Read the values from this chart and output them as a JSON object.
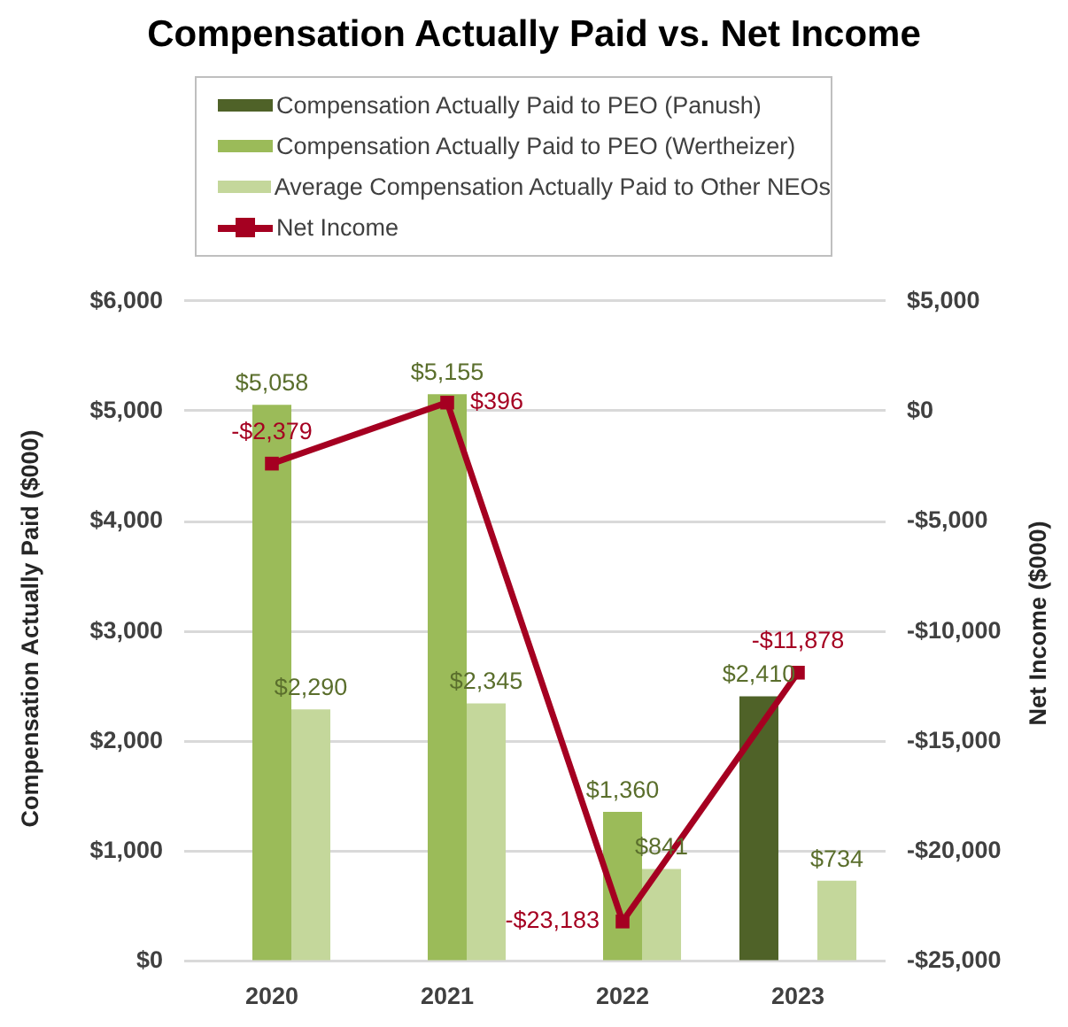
{
  "chart_data": {
    "type": "bar",
    "title": "Compensation Actually Paid vs. Net Income",
    "ylabel": "Compensation Actually Paid ($000)",
    "y2label": "Net Income ($000)",
    "categories": [
      "2020",
      "2021",
      "2022",
      "2023"
    ],
    "series": [
      {
        "name": "Compensation Actually Paid to PEO (Panush)",
        "color": "#4f6228",
        "values": [
          null,
          null,
          null,
          2410
        ],
        "value_labels": [
          null,
          null,
          null,
          "$2,410"
        ]
      },
      {
        "name": "Compensation Actually Paid to PEO (Wertheizer)",
        "color": "#9bbb59",
        "values": [
          5058,
          5155,
          1360,
          null
        ],
        "value_labels": [
          "$5,058",
          "$5,155",
          "$1,360",
          null
        ]
      },
      {
        "name": "Average Compensation Actually Paid to Other NEOs",
        "color": "#c4d79b",
        "values": [
          2290,
          2345,
          841,
          734
        ],
        "value_labels": [
          "$2,290",
          "$2,345",
          "$841",
          "$734"
        ]
      },
      {
        "name": "Net Income",
        "type": "line",
        "axis": "y2",
        "color": "#a50021",
        "marker": "square",
        "values": [
          -2379,
          396,
          -23183,
          -11878
        ],
        "value_labels": [
          "-$2,379",
          "$396",
          "-$23,183",
          "-$11,878"
        ]
      }
    ],
    "ylim": [
      0,
      6000
    ],
    "yticks": [
      {
        "value": 0,
        "label": "$0"
      },
      {
        "value": 1000,
        "label": "$1,000"
      },
      {
        "value": 2000,
        "label": "$2,000"
      },
      {
        "value": 3000,
        "label": "$3,000"
      },
      {
        "value": 4000,
        "label": "$4,000"
      },
      {
        "value": 5000,
        "label": "$5,000"
      },
      {
        "value": 6000,
        "label": "$6,000"
      }
    ],
    "y2lim": [
      -25000,
      5000
    ],
    "y2ticks": [
      {
        "value": -25000,
        "label": "-$25,000"
      },
      {
        "value": -20000,
        "label": "-$20,000"
      },
      {
        "value": -15000,
        "label": "-$15,000"
      },
      {
        "value": -10000,
        "label": "-$10,000"
      },
      {
        "value": -5000,
        "label": "-$5,000"
      },
      {
        "value": 0,
        "label": "$0"
      },
      {
        "value": 5000,
        "label": "$5,000"
      }
    ],
    "grid": "y",
    "legend": "top"
  }
}
